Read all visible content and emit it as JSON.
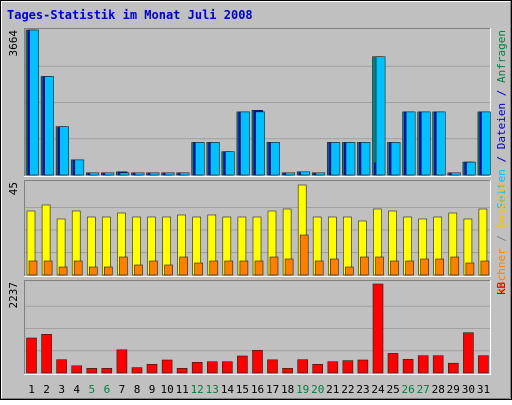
{
  "chart_data": {
    "type": "bar",
    "title": "Tages-Statistik im Monat Juli 2008",
    "categories": [
      "1",
      "2",
      "3",
      "4",
      "5",
      "6",
      "7",
      "8",
      "9",
      "10",
      "11",
      "12",
      "13",
      "14",
      "15",
      "16",
      "17",
      "18",
      "19",
      "20",
      "21",
      "22",
      "23",
      "24",
      "25",
      "26",
      "27",
      "28",
      "29",
      "30",
      "31"
    ],
    "weekend_days": [
      "5",
      "6",
      "12",
      "13",
      "19",
      "20",
      "26",
      "27"
    ],
    "panels": [
      {
        "ymax_label": "3664",
        "ylim": [
          0,
          3664
        ],
        "side_labels": [
          {
            "text": "Seiten",
            "color": "#00c0ff"
          },
          {
            "text": " / ",
            "color": "#0000c0"
          },
          {
            "text": "Dateien",
            "color": "#0000c0"
          },
          {
            "text": " / ",
            "color": "#0000c0"
          },
          {
            "text": "Anfragen",
            "color": "#008040"
          }
        ],
        "series": [
          {
            "name": "Anfragen",
            "color": "#008080",
            "values": [
              3664,
              2489,
              1220,
              382,
              55,
              55,
              80,
              55,
              55,
              55,
              55,
              825,
              825,
              590,
              1595,
              1635,
              825,
              55,
              80,
              55,
              825,
              825,
              825,
              2989,
              825,
              1595,
              1595,
              1595,
              55,
              327,
              1595
            ]
          },
          {
            "name": "Dateien",
            "color": "#0000ff",
            "values": [
              3664,
              2489,
              1220,
              382,
              55,
              55,
              80,
              55,
              55,
              55,
              55,
              825,
              825,
              590,
              1595,
              1635,
              825,
              55,
              80,
              55,
              825,
              825,
              825,
              310,
              825,
              1595,
              1595,
              1595,
              55,
              327,
              1595
            ]
          },
          {
            "name": "Seiten",
            "color": "#00c0ff",
            "values": [
              3664,
              2489,
              1220,
              382,
              55,
              55,
              55,
              55,
              55,
              55,
              55,
              825,
              825,
              590,
              1595,
              1595,
              825,
              55,
              80,
              55,
              825,
              825,
              825,
              2989,
              825,
              1595,
              1595,
              1595,
              55,
              327,
              1595
            ]
          }
        ]
      },
      {
        "ymax_label": "45",
        "ylim": [
          0,
          45
        ],
        "side_labels": [
          {
            "text": "Rechner",
            "color": "#ff8000"
          },
          {
            "text": " / ",
            "color": "#808080"
          },
          {
            "text": "Besuche",
            "color": "#ffc000"
          }
        ],
        "series": [
          {
            "name": "Besuche",
            "color": "#ffff00",
            "values": [
              32,
              35,
              28,
              32,
              29,
              29,
              31,
              29,
              29,
              29,
              30,
              29,
              30,
              29,
              29,
              29,
              32,
              33,
              45,
              29,
              29,
              29,
              27,
              33,
              32,
              29,
              28,
              29,
              31,
              28,
              33
            ]
          },
          {
            "name": "Rechner",
            "color": "#ff8000",
            "values": [
              7,
              7,
              4,
              7,
              4,
              4,
              9,
              5,
              7,
              5,
              9,
              6,
              7,
              7,
              7,
              7,
              9,
              8,
              20,
              7,
              8,
              4,
              9,
              9,
              7,
              7,
              8,
              8,
              9,
              6,
              7
            ]
          }
        ]
      },
      {
        "ymax_label": "2237",
        "ylim": [
          0,
          2237
        ],
        "side_labels": [
          {
            "text": "kB",
            "color": "#c00000"
          }
        ],
        "series": [
          {
            "name": "kB",
            "color": "#ff0000",
            "values": [
              880,
              972,
              334,
              182,
              117,
              117,
              583,
              136,
              219,
              326,
              117,
              268,
              283,
              283,
              428,
              571,
              331,
              117,
              335,
              219,
              283,
              311,
              326,
              2237,
              492,
              344,
              434,
              434,
              247,
              1012,
              434
            ]
          }
        ]
      }
    ]
  }
}
